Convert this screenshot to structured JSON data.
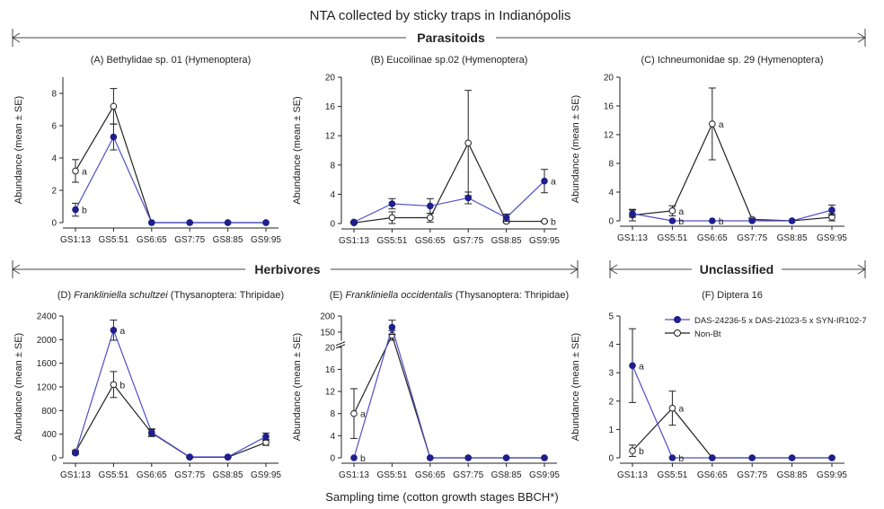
{
  "figure": {
    "title": "NTA collected by sticky traps in Indianópolis",
    "xlabel": "Sampling time (cotton growth stages BBCH*)",
    "groups": [
      "Parasitoids",
      "Herbivores",
      "Unclassified"
    ],
    "legend": [
      "DAS-24236-5 x DAS-21023-5 x SYN-IR102-7",
      "Non-Bt"
    ]
  },
  "colors": {
    "bt": "#1f1f8f",
    "bt_line": "#4f4fc8",
    "nonbt": "#ffffff",
    "nonbt_line": "#222222"
  },
  "chart_data": [
    {
      "type": "line",
      "title": "(A) Bethylidae sp. 01 (Hymenoptera)",
      "ylabel": "Abundance (mean ± SE)",
      "categories": [
        "GS1:13",
        "GS5:51",
        "GS6:65",
        "GS7:75",
        "GS8:85",
        "GS9:95"
      ],
      "ylim": [
        0,
        9
      ],
      "yticks": [
        0,
        2,
        4,
        6,
        8
      ],
      "series": [
        {
          "values": [
            0.8,
            5.3,
            0,
            0,
            0,
            0
          ],
          "err": [
            0.4,
            0.8,
            0,
            0,
            0,
            0
          ]
        },
        {
          "values": [
            3.2,
            7.2,
            0,
            0,
            0,
            0
          ],
          "err": [
            0.7,
            1.1,
            0,
            0,
            0,
            0
          ]
        }
      ],
      "annotations": [
        {
          "series": 1,
          "index": 0,
          "text": "a"
        },
        {
          "series": 0,
          "index": 0,
          "text": "b"
        }
      ]
    },
    {
      "type": "line",
      "title": "(B) Eucoilinae sp.02 (Hymenoptera)",
      "ylabel": "Abundance (mean ± SE)",
      "categories": [
        "GS1:13",
        "GS5:51",
        "GS6:65",
        "GS7:75",
        "GS8:85",
        "GS9:95"
      ],
      "ylim": [
        0,
        20
      ],
      "yticks": [
        0,
        4,
        8,
        12,
        16,
        20
      ],
      "series": [
        {
          "values": [
            0.2,
            2.7,
            2.4,
            3.5,
            0.8,
            5.8
          ],
          "err": [
            0.1,
            0.7,
            1.0,
            0.8,
            0.5,
            1.6
          ]
        },
        {
          "values": [
            0.1,
            0.8,
            0.8,
            11.0,
            0.3,
            0.3
          ],
          "err": [
            0.1,
            0.8,
            0.6,
            7.2,
            0.2,
            0.1
          ]
        }
      ],
      "annotations": [
        {
          "series": 0,
          "index": 5,
          "text": "a"
        },
        {
          "series": 1,
          "index": 5,
          "text": "b"
        }
      ]
    },
    {
      "type": "line",
      "title": "(C) Ichneumonidae sp. 29 (Hymenoptera)",
      "ylabel": "Abundance (mean ± SE)",
      "categories": [
        "GS1:13",
        "GS5:51",
        "GS6:65",
        "GS7:75",
        "GS8:85",
        "GS9:95"
      ],
      "ylim": [
        0,
        20
      ],
      "yticks": [
        0,
        4,
        8,
        12,
        16,
        20
      ],
      "series": [
        {
          "values": [
            1.0,
            0.0,
            0.0,
            0.0,
            0.0,
            1.5
          ],
          "err": [
            0.5,
            0,
            0,
            0,
            0,
            0.7
          ]
        },
        {
          "values": [
            0.8,
            1.4,
            13.5,
            0.2,
            0.0,
            0.5
          ],
          "err": [
            0.8,
            0.7,
            5.0,
            0.2,
            0,
            0.5
          ]
        }
      ],
      "annotations": [
        {
          "series": 1,
          "index": 1,
          "text": "a"
        },
        {
          "series": 0,
          "index": 1,
          "text": "b"
        },
        {
          "series": 1,
          "index": 2,
          "text": "a"
        },
        {
          "series": 0,
          "index": 2,
          "text": "b"
        }
      ]
    },
    {
      "type": "line",
      "title": "(D) Frankliniella schultzei (Thysanoptera: Thripidae)",
      "ylabel": "Abundance (mean ± SE)",
      "categories": [
        "GS1:13",
        "GS5:51",
        "GS6:65",
        "GS7:75",
        "GS8:85",
        "GS9:95"
      ],
      "ylim": [
        0,
        2400
      ],
      "yticks": [
        0,
        400,
        800,
        1200,
        1600,
        2000,
        2400
      ],
      "series": [
        {
          "values": [
            80,
            2160,
            430,
            15,
            15,
            360
          ],
          "err": [
            20,
            170,
            60,
            5,
            5,
            60
          ]
        },
        {
          "values": [
            100,
            1240,
            420,
            10,
            10,
            260
          ],
          "err": [
            25,
            220,
            60,
            5,
            5,
            50
          ]
        }
      ],
      "annotations": [
        {
          "series": 0,
          "index": 1,
          "text": "a"
        },
        {
          "series": 1,
          "index": 1,
          "text": "b"
        }
      ]
    },
    {
      "type": "line",
      "title": "(E) Frankliniella occidentalis (Thysanoptera: Thripidae)",
      "ylabel": "Abundance (mean ± SE)",
      "categories": [
        "GS1:13",
        "GS5:51",
        "GS6:65",
        "GS7:75",
        "GS8:85",
        "GS9:95"
      ],
      "ylim": [
        0,
        200
      ],
      "yticks": [
        0,
        4,
        8,
        12,
        16,
        20,
        150,
        200
      ],
      "axis_break": [
        20,
        120
      ],
      "series": [
        {
          "values": [
            0.0,
            165,
            0,
            0,
            0,
            0
          ],
          "err": [
            0,
            22,
            0,
            0,
            0,
            0
          ]
        },
        {
          "values": [
            8.0,
            140,
            0,
            0,
            0,
            0
          ],
          "err": [
            4.5,
            15,
            0,
            0,
            0,
            0
          ]
        }
      ],
      "annotations": [
        {
          "series": 1,
          "index": 0,
          "text": "a"
        },
        {
          "series": 0,
          "index": 0,
          "text": "b"
        }
      ]
    },
    {
      "type": "line",
      "title": "(F) Diptera 16",
      "ylabel": "Abundance (mean ± SE)",
      "categories": [
        "GS1:13",
        "GS5:51",
        "GS6:65",
        "GS7:75",
        "GS8:85",
        "GS9:95"
      ],
      "ylim": [
        0,
        5
      ],
      "yticks": [
        0,
        1,
        2,
        3,
        4,
        5
      ],
      "legend": "inside-top-right",
      "series": [
        {
          "name": "DAS-24236-5 x DAS-21023-5 x SYN-IR102-7",
          "values": [
            3.25,
            0,
            0,
            0,
            0,
            0
          ],
          "err": [
            1.3,
            0,
            0,
            0,
            0,
            0
          ]
        },
        {
          "name": "Non-Bt",
          "values": [
            0.25,
            1.75,
            0,
            0,
            0,
            0
          ],
          "err": [
            0.2,
            0.6,
            0,
            0,
            0,
            0
          ]
        }
      ],
      "annotations": [
        {
          "series": 0,
          "index": 0,
          "text": "a"
        },
        {
          "series": 1,
          "index": 0,
          "text": "b"
        },
        {
          "series": 1,
          "index": 1,
          "text": "a"
        },
        {
          "series": 0,
          "index": 1,
          "text": "b"
        }
      ]
    }
  ]
}
